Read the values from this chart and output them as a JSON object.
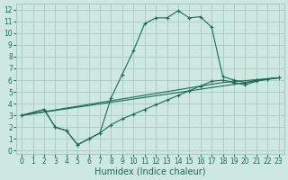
{
  "xlabel": "Humidex (Indice chaleur)",
  "bg_color": "#cde8e0",
  "grid_color": "#a8c8c0",
  "line_color": "#1a6b5a",
  "xlim": [
    -0.5,
    23.5
  ],
  "ylim": [
    -0.3,
    12.5
  ],
  "xtick_labels": [
    "0",
    "1",
    "2",
    "3",
    "4",
    "5",
    "6",
    "7",
    "8",
    "9",
    "10",
    "11",
    "12",
    "13",
    "14",
    "15",
    "16",
    "17",
    "18",
    "19",
    "20",
    "21",
    "22",
    "23"
  ],
  "xtick_vals": [
    0,
    1,
    2,
    3,
    4,
    5,
    6,
    7,
    8,
    9,
    10,
    11,
    12,
    13,
    14,
    15,
    16,
    17,
    18,
    19,
    20,
    21,
    22,
    23
  ],
  "ytick_vals": [
    0,
    1,
    2,
    3,
    4,
    5,
    6,
    7,
    8,
    9,
    10,
    11,
    12
  ],
  "line1_x": [
    0,
    2,
    3,
    4,
    5,
    6,
    7,
    8,
    9,
    10,
    11,
    12,
    13,
    14,
    15,
    16,
    17,
    18,
    19,
    20,
    21,
    22,
    23
  ],
  "line1_y": [
    3.0,
    3.5,
    2.0,
    1.7,
    0.5,
    1.0,
    1.5,
    4.5,
    6.5,
    8.5,
    10.8,
    11.3,
    11.3,
    11.9,
    11.3,
    11.4,
    10.5,
    6.3,
    6.0,
    5.8,
    6.0,
    6.1,
    6.2
  ],
  "line2_x": [
    0,
    2,
    3,
    4,
    5,
    6,
    7,
    8,
    9,
    10,
    11,
    12,
    13,
    14,
    15,
    16,
    17,
    18,
    19,
    20,
    21,
    22,
    23
  ],
  "line2_y": [
    3.0,
    3.5,
    2.0,
    1.7,
    0.5,
    1.0,
    1.5,
    2.2,
    2.7,
    3.1,
    3.5,
    3.9,
    4.3,
    4.7,
    5.1,
    5.5,
    5.9,
    6.0,
    5.8,
    5.6,
    5.9,
    6.1,
    6.2
  ],
  "line3_x": [
    0,
    18,
    23
  ],
  "line3_y": [
    3.0,
    5.8,
    6.2
  ],
  "line4_x": [
    0,
    23
  ],
  "line4_y": [
    3.0,
    6.2
  ],
  "fontsize_tick": 5.5,
  "fontsize_xlabel": 7.0
}
